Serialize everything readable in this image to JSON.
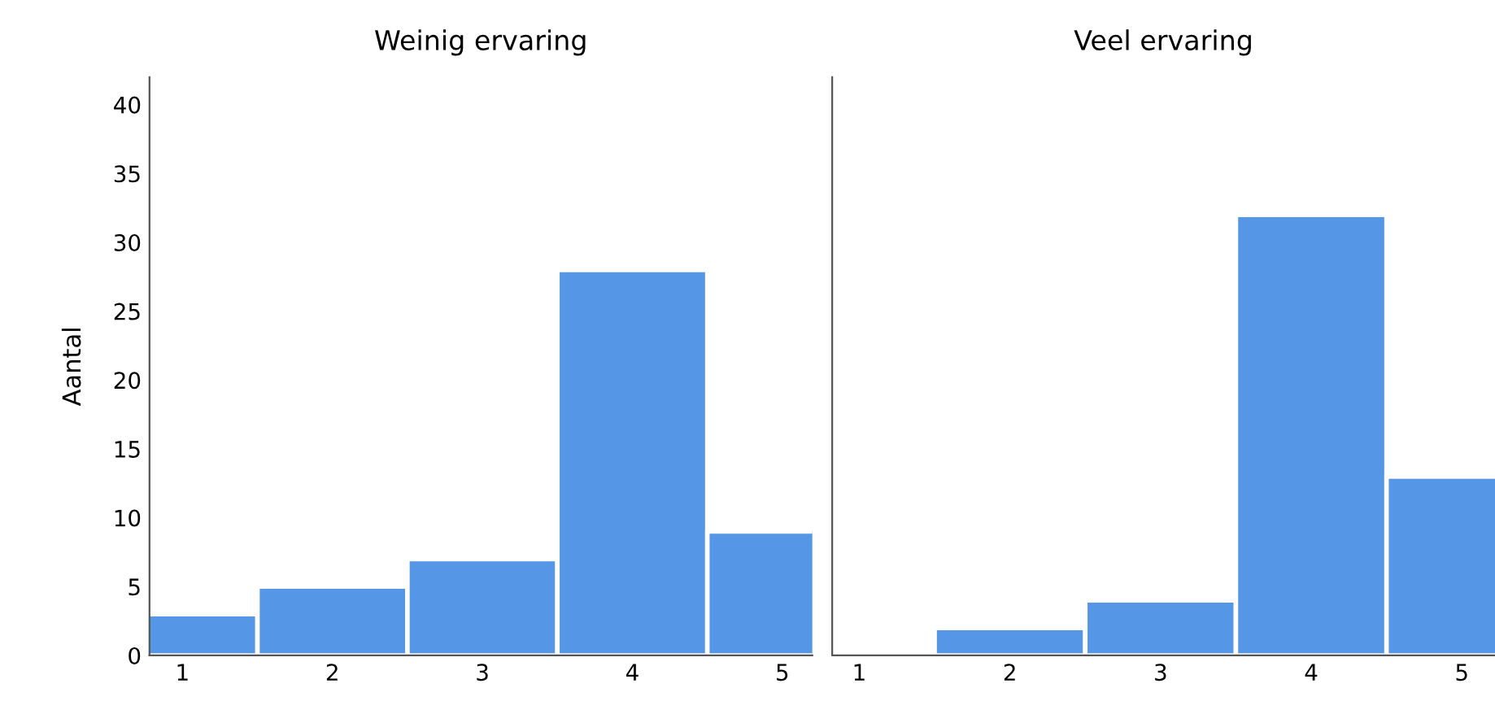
{
  "chart_data": [
    {
      "type": "histogram",
      "title": "Weinig ervaring",
      "ylabel": "Aantal",
      "bins": [
        0.5,
        1.5,
        2.5,
        3.5,
        4.5,
        5.5
      ],
      "values": [
        3,
        5,
        7,
        28,
        9
      ],
      "color": "#5596e6",
      "xlim": [
        0.78,
        5.2
      ],
      "xticks": [
        1,
        2,
        3,
        4,
        5
      ],
      "ylim": [
        0,
        42
      ],
      "yticks": [
        0,
        5,
        10,
        15,
        20,
        25,
        30,
        35,
        40
      ],
      "grid": false
    },
    {
      "type": "histogram",
      "title": "Veel ervaring",
      "bins": [
        0.5,
        1.5,
        2.5,
        3.5,
        4.5,
        5.5
      ],
      "values": [
        0,
        2,
        4,
        32,
        13
      ],
      "color": "#5596e6",
      "xlim": [
        0.82,
        5.22
      ],
      "xticks": [
        1,
        2,
        3,
        4,
        5
      ],
      "ylim": [
        0,
        42
      ],
      "yticks": [
        0,
        5,
        10,
        15,
        20,
        25,
        30,
        35,
        40
      ],
      "grid": false,
      "tick_labels": "x"
    }
  ]
}
